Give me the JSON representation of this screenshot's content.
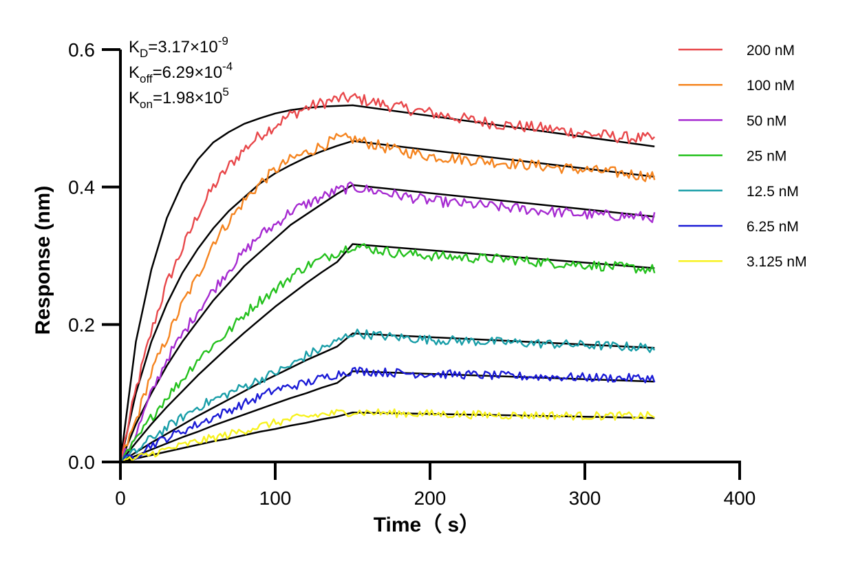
{
  "chart_data": {
    "type": "line",
    "title": "",
    "xlabel": "Time（ s）",
    "ylabel": "Response (nm)",
    "xlim": [
      0,
      400
    ],
    "ylim": [
      0,
      0.6
    ],
    "x_ticks": [
      "0",
      "100",
      "200",
      "300",
      "400"
    ],
    "y_ticks": [
      "0.0",
      "0.2",
      "0.4",
      "0.6"
    ],
    "grid": false,
    "legend_position": "right",
    "annotations": [
      {
        "base": "K",
        "sub": "D",
        "rest": "=3.17×10",
        "sup": "-9"
      },
      {
        "base": "K",
        "sub": "off",
        "rest": "=6.29×10",
        "sup": "-4"
      },
      {
        "base": "K",
        "sub": "on",
        "rest": "=1.98×10",
        "sup": "5"
      }
    ],
    "fit_color": "#000000",
    "association_end": 150,
    "x_end": 345,
    "series": [
      {
        "name": "200 nM",
        "color": "#e8474a",
        "x": [
          0,
          10,
          20,
          30,
          40,
          50,
          60,
          70,
          80,
          90,
          100,
          110,
          120,
          130,
          140,
          150,
          175,
          200,
          225,
          250,
          275,
          300,
          325,
          345
        ],
        "values": [
          0,
          0.105,
          0.19,
          0.26,
          0.31,
          0.36,
          0.4,
          0.43,
          0.455,
          0.475,
          0.49,
          0.505,
          0.515,
          0.522,
          0.528,
          0.53,
          0.518,
          0.508,
          0.498,
          0.49,
          0.485,
          0.478,
          0.472,
          0.47
        ]
      },
      {
        "name": "100 nM",
        "color": "#f5841f",
        "x": [
          0,
          10,
          20,
          30,
          40,
          50,
          60,
          70,
          80,
          90,
          100,
          110,
          120,
          130,
          140,
          150,
          175,
          200,
          225,
          250,
          275,
          300,
          325,
          345
        ],
        "values": [
          0,
          0.06,
          0.13,
          0.18,
          0.23,
          0.27,
          0.32,
          0.35,
          0.38,
          0.405,
          0.425,
          0.44,
          0.45,
          0.46,
          0.47,
          0.47,
          0.455,
          0.445,
          0.44,
          0.435,
          0.43,
          0.425,
          0.42,
          0.415
        ]
      },
      {
        "name": "50 nM",
        "color": "#a62bd1",
        "x": [
          0,
          10,
          20,
          30,
          40,
          50,
          60,
          70,
          80,
          90,
          100,
          110,
          120,
          130,
          140,
          150,
          175,
          200,
          225,
          250,
          275,
          300,
          325,
          345
        ],
        "values": [
          0,
          0.04,
          0.1,
          0.15,
          0.185,
          0.22,
          0.25,
          0.28,
          0.305,
          0.33,
          0.345,
          0.365,
          0.375,
          0.385,
          0.395,
          0.4,
          0.39,
          0.38,
          0.375,
          0.37,
          0.365,
          0.36,
          0.358,
          0.356
        ]
      },
      {
        "name": "25 nM",
        "color": "#24c11d",
        "x": [
          0,
          10,
          20,
          30,
          40,
          50,
          60,
          70,
          80,
          90,
          100,
          110,
          120,
          130,
          140,
          150,
          175,
          200,
          225,
          250,
          275,
          300,
          325,
          345
        ],
        "values": [
          0,
          0.03,
          0.065,
          0.095,
          0.12,
          0.15,
          0.17,
          0.19,
          0.215,
          0.235,
          0.25,
          0.27,
          0.285,
          0.295,
          0.305,
          0.315,
          0.305,
          0.3,
          0.297,
          0.295,
          0.29,
          0.287,
          0.283,
          0.28
        ]
      },
      {
        "name": "12.5 nM",
        "color": "#199ea8",
        "x": [
          0,
          10,
          20,
          30,
          40,
          50,
          60,
          70,
          80,
          90,
          100,
          110,
          120,
          130,
          140,
          150,
          175,
          200,
          225,
          250,
          275,
          300,
          325,
          345
        ],
        "values": [
          0,
          0.015,
          0.035,
          0.05,
          0.065,
          0.08,
          0.09,
          0.1,
          0.11,
          0.12,
          0.13,
          0.14,
          0.155,
          0.165,
          0.175,
          0.188,
          0.182,
          0.178,
          0.176,
          0.174,
          0.172,
          0.17,
          0.168,
          0.166
        ]
      },
      {
        "name": "6.25 nM",
        "color": "#1a1ad6",
        "x": [
          0,
          10,
          20,
          30,
          40,
          50,
          60,
          70,
          80,
          90,
          100,
          110,
          120,
          130,
          140,
          150,
          175,
          200,
          225,
          250,
          275,
          300,
          325,
          345
        ],
        "values": [
          0,
          0.01,
          0.025,
          0.035,
          0.045,
          0.055,
          0.065,
          0.075,
          0.085,
          0.095,
          0.105,
          0.11,
          0.115,
          0.122,
          0.128,
          0.133,
          0.13,
          0.128,
          0.127,
          0.125,
          0.124,
          0.123,
          0.122,
          0.122
        ]
      },
      {
        "name": "3.125 nM",
        "color": "#f7f21e",
        "x": [
          0,
          10,
          20,
          30,
          40,
          50,
          60,
          70,
          80,
          90,
          100,
          110,
          120,
          130,
          140,
          150,
          175,
          200,
          225,
          250,
          275,
          300,
          325,
          345
        ],
        "values": [
          0,
          0.005,
          0.012,
          0.018,
          0.024,
          0.03,
          0.035,
          0.04,
          0.046,
          0.052,
          0.057,
          0.062,
          0.066,
          0.069,
          0.071,
          0.073,
          0.071,
          0.07,
          0.069,
          0.068,
          0.068,
          0.067,
          0.067,
          0.067
        ]
      }
    ],
    "fits": [
      {
        "name": "fit 200 nM",
        "x": [
          0,
          10,
          20,
          30,
          40,
          50,
          60,
          70,
          80,
          90,
          100,
          110,
          120,
          130,
          140,
          150,
          345
        ],
        "values": [
          0,
          0.175,
          0.28,
          0.355,
          0.405,
          0.44,
          0.465,
          0.48,
          0.492,
          0.5,
          0.507,
          0.512,
          0.515,
          0.517,
          0.518,
          0.519,
          0.459
        ]
      },
      {
        "name": "fit 100 nM",
        "x": [
          0,
          10,
          20,
          30,
          40,
          50,
          60,
          70,
          80,
          90,
          100,
          110,
          120,
          130,
          140,
          150,
          345
        ],
        "values": [
          0,
          0.1,
          0.175,
          0.23,
          0.275,
          0.31,
          0.34,
          0.365,
          0.385,
          0.405,
          0.42,
          0.432,
          0.443,
          0.452,
          0.46,
          0.467,
          0.415
        ]
      },
      {
        "name": "fit 50 nM",
        "x": [
          0,
          10,
          20,
          30,
          40,
          50,
          60,
          70,
          80,
          90,
          100,
          110,
          120,
          130,
          140,
          150,
          345
        ],
        "values": [
          0,
          0.055,
          0.1,
          0.14,
          0.175,
          0.205,
          0.235,
          0.26,
          0.285,
          0.305,
          0.325,
          0.345,
          0.36,
          0.375,
          0.39,
          0.403,
          0.357
        ]
      },
      {
        "name": "fit 25 nM",
        "x": [
          0,
          10,
          20,
          30,
          40,
          50,
          60,
          70,
          80,
          90,
          100,
          110,
          120,
          130,
          140,
          150,
          345
        ],
        "values": [
          0,
          0.028,
          0.055,
          0.08,
          0.103,
          0.126,
          0.147,
          0.168,
          0.188,
          0.207,
          0.226,
          0.243,
          0.26,
          0.276,
          0.291,
          0.317,
          0.282
        ]
      },
      {
        "name": "fit 12.5 nM",
        "x": [
          0,
          10,
          20,
          30,
          40,
          50,
          60,
          70,
          80,
          90,
          100,
          110,
          120,
          130,
          140,
          150,
          345
        ],
        "values": [
          0,
          0.014,
          0.028,
          0.041,
          0.054,
          0.067,
          0.079,
          0.091,
          0.103,
          0.115,
          0.126,
          0.137,
          0.148,
          0.158,
          0.168,
          0.187,
          0.166
        ]
      },
      {
        "name": "fit 6.25 nM",
        "x": [
          0,
          10,
          20,
          30,
          40,
          50,
          60,
          70,
          80,
          90,
          100,
          110,
          120,
          130,
          140,
          150,
          345
        ],
        "values": [
          0,
          0.009,
          0.018,
          0.027,
          0.036,
          0.044,
          0.053,
          0.061,
          0.069,
          0.077,
          0.085,
          0.093,
          0.1,
          0.108,
          0.115,
          0.132,
          0.117
        ]
      },
      {
        "name": "fit 3.125 nM",
        "x": [
          0,
          10,
          20,
          30,
          40,
          50,
          60,
          70,
          80,
          90,
          100,
          110,
          120,
          130,
          140,
          150,
          345
        ],
        "values": [
          0,
          0.005,
          0.01,
          0.015,
          0.02,
          0.025,
          0.03,
          0.034,
          0.039,
          0.044,
          0.048,
          0.053,
          0.057,
          0.062,
          0.066,
          0.072,
          0.064
        ]
      }
    ]
  }
}
